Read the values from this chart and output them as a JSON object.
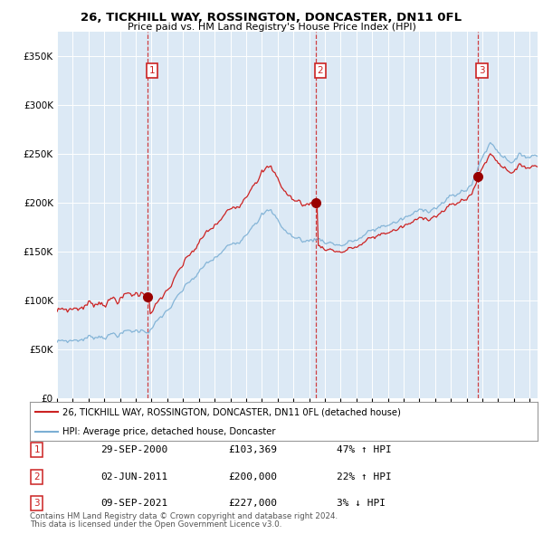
{
  "title1": "26, TICKHILL WAY, ROSSINGTON, DONCASTER, DN11 0FL",
  "title2": "Price paid vs. HM Land Registry's House Price Index (HPI)",
  "ytick_vals": [
    0,
    50000,
    100000,
    150000,
    200000,
    250000,
    300000,
    350000
  ],
  "ylim": [
    0,
    375000
  ],
  "xlim_start": 1995.0,
  "xlim_end": 2025.5,
  "xticks": [
    1995,
    1996,
    1997,
    1998,
    1999,
    2000,
    2001,
    2002,
    2003,
    2004,
    2005,
    2006,
    2007,
    2008,
    2009,
    2010,
    2011,
    2012,
    2013,
    2014,
    2015,
    2016,
    2017,
    2018,
    2019,
    2020,
    2021,
    2022,
    2023,
    2024,
    2025
  ],
  "legend_line1": "26, TICKHILL WAY, ROSSINGTON, DONCASTER, DN11 0FL (detached house)",
  "legend_line2": "HPI: Average price, detached house, Doncaster",
  "sale1_date": "29-SEP-2000",
  "sale1_price": "£103,369",
  "sale1_pct": "47% ↑ HPI",
  "sale1_x": 2000.75,
  "sale1_y": 103369,
  "sale2_date": "02-JUN-2011",
  "sale2_price": "£200,000",
  "sale2_pct": "22% ↑ HPI",
  "sale2_x": 2011.42,
  "sale2_y": 200000,
  "sale3_date": "09-SEP-2021",
  "sale3_price": "£227,000",
  "sale3_pct": "3% ↓ HPI",
  "sale3_x": 2021.69,
  "sale3_y": 227000,
  "hpi_color": "#7bafd4",
  "price_color": "#cc2222",
  "plot_bg": "#dce9f5",
  "footer1": "Contains HM Land Registry data © Crown copyright and database right 2024.",
  "footer2": "This data is licensed under the Open Government Licence v3.0."
}
